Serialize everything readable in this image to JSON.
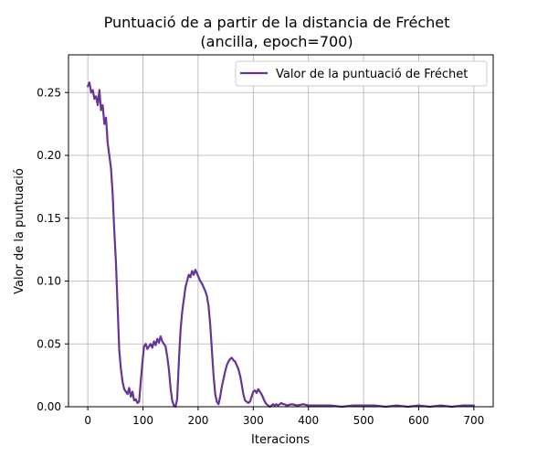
{
  "chart_data": {
    "type": "line",
    "title": "Puntuació de a partir de la distancia de Fréchet",
    "subtitle": "(ancilla, epoch=700)",
    "xlabel": "Iteracions",
    "ylabel": "Valor de la puntuació",
    "xlim": [
      -35,
      735
    ],
    "ylim": [
      0.0,
      0.28
    ],
    "xticks": [
      0,
      100,
      200,
      300,
      400,
      500,
      600,
      700
    ],
    "yticks": [
      0.0,
      0.05,
      0.1,
      0.15,
      0.2,
      0.25
    ],
    "ytick_labels": [
      "0.00",
      "0.05",
      "0.10",
      "0.15",
      "0.20",
      "0.25"
    ],
    "grid": true,
    "legend_position": "top-right",
    "series": [
      {
        "name": "Valor de la puntuació de Fréchet",
        "color": "#663399",
        "x": [
          0,
          3,
          6,
          9,
          12,
          15,
          18,
          21,
          24,
          27,
          30,
          33,
          36,
          39,
          42,
          45,
          48,
          51,
          54,
          57,
          60,
          63,
          66,
          69,
          72,
          75,
          78,
          81,
          84,
          87,
          90,
          93,
          96,
          99,
          102,
          105,
          108,
          111,
          114,
          117,
          120,
          123,
          126,
          129,
          132,
          135,
          138,
          141,
          144,
          147,
          150,
          153,
          156,
          159,
          162,
          165,
          168,
          171,
          174,
          177,
          180,
          183,
          186,
          189,
          192,
          195,
          198,
          201,
          204,
          207,
          210,
          213,
          216,
          219,
          222,
          225,
          228,
          231,
          234,
          237,
          240,
          243,
          246,
          249,
          252,
          255,
          258,
          261,
          264,
          267,
          270,
          273,
          276,
          279,
          282,
          285,
          288,
          291,
          294,
          297,
          300,
          303,
          306,
          309,
          312,
          315,
          318,
          321,
          324,
          327,
          330,
          333,
          336,
          339,
          342,
          345,
          348,
          351,
          354,
          357,
          360,
          370,
          380,
          390,
          400,
          420,
          440,
          460,
          480,
          500,
          520,
          540,
          560,
          580,
          600,
          620,
          640,
          660,
          680,
          700
        ],
        "y": [
          0.255,
          0.258,
          0.25,
          0.252,
          0.245,
          0.247,
          0.24,
          0.252,
          0.236,
          0.24,
          0.225,
          0.23,
          0.21,
          0.2,
          0.19,
          0.17,
          0.14,
          0.115,
          0.08,
          0.045,
          0.03,
          0.02,
          0.014,
          0.012,
          0.01,
          0.015,
          0.008,
          0.012,
          0.005,
          0.006,
          0.003,
          0.004,
          0.02,
          0.035,
          0.048,
          0.05,
          0.046,
          0.048,
          0.05,
          0.047,
          0.052,
          0.049,
          0.054,
          0.051,
          0.056,
          0.052,
          0.05,
          0.048,
          0.04,
          0.03,
          0.015,
          0.005,
          0.001,
          0.0,
          0.006,
          0.035,
          0.06,
          0.075,
          0.085,
          0.095,
          0.1,
          0.105,
          0.103,
          0.108,
          0.105,
          0.109,
          0.106,
          0.103,
          0.1,
          0.098,
          0.095,
          0.092,
          0.088,
          0.08,
          0.065,
          0.045,
          0.025,
          0.01,
          0.004,
          0.002,
          0.008,
          0.016,
          0.022,
          0.028,
          0.033,
          0.036,
          0.038,
          0.039,
          0.037,
          0.036,
          0.033,
          0.03,
          0.025,
          0.018,
          0.01,
          0.005,
          0.004,
          0.003,
          0.004,
          0.008,
          0.012,
          0.013,
          0.011,
          0.014,
          0.012,
          0.01,
          0.007,
          0.004,
          0.002,
          0.001,
          0.0,
          0.001,
          0.002,
          0.001,
          0.002,
          0.001,
          0.002,
          0.003,
          0.002,
          0.002,
          0.001,
          0.002,
          0.001,
          0.002,
          0.001,
          0.001,
          0.001,
          0.0,
          0.001,
          0.001,
          0.001,
          0.0,
          0.001,
          0.0,
          0.001,
          0.0,
          0.001,
          0.0,
          0.001,
          0.001
        ]
      }
    ]
  }
}
